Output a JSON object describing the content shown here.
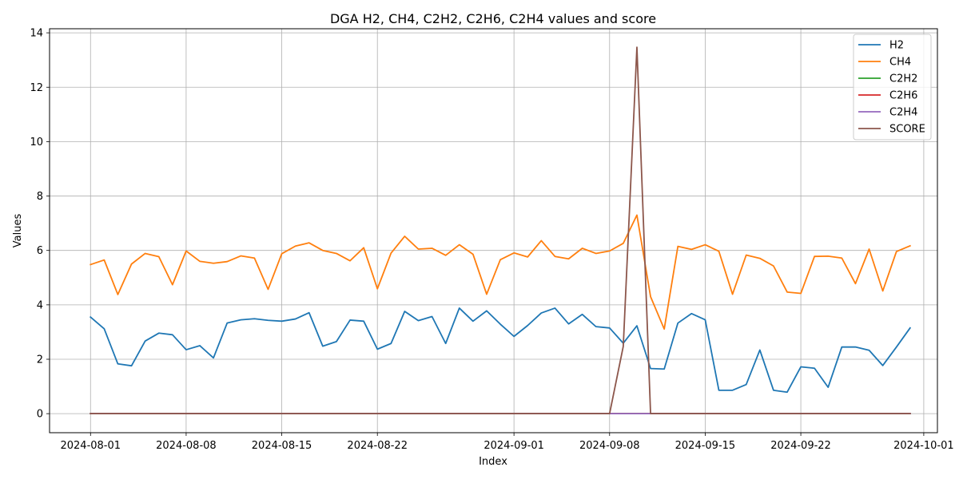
{
  "chart_data": {
    "type": "line",
    "title": "DGA H2, CH4, C2H2, C2H6, C2H4 values and score",
    "xlabel": "Index",
    "ylabel": "Values",
    "x_start": "2024-08-01",
    "xlim": [
      "2024-07-29",
      "2024-10-02"
    ],
    "ylim": [
      -0.7,
      14.15
    ],
    "xticks": [
      "2024-08-01",
      "2024-08-08",
      "2024-08-15",
      "2024-08-22",
      "2024-09-01",
      "2024-09-08",
      "2024-09-15",
      "2024-09-22",
      "2024-10-01"
    ],
    "yticks": [
      0,
      2,
      4,
      6,
      8,
      10,
      12,
      14
    ],
    "grid": true,
    "legend_position": "top-right",
    "series": [
      {
        "name": "H2",
        "color": "#1f77b4",
        "values": [
          3.55,
          3.12,
          1.83,
          1.76,
          2.67,
          2.96,
          2.9,
          2.35,
          2.5,
          2.05,
          3.33,
          3.45,
          3.49,
          3.43,
          3.4,
          3.48,
          3.71,
          2.48,
          2.65,
          3.44,
          3.4,
          2.37,
          2.58,
          3.76,
          3.42,
          3.57,
          2.58,
          3.88,
          3.4,
          3.78,
          3.29,
          2.84,
          3.24,
          3.7,
          3.88,
          3.3,
          3.65,
          3.2,
          3.15,
          2.59,
          3.23,
          1.66,
          1.64,
          3.33,
          3.68,
          3.45,
          0.86,
          0.86,
          1.07,
          2.34,
          0.86,
          0.79,
          1.72,
          1.67,
          0.97,
          2.45,
          2.45,
          2.33,
          1.77,
          2.45,
          3.15
        ]
      },
      {
        "name": "CH4",
        "color": "#ff7f0e",
        "values": [
          5.48,
          5.65,
          4.38,
          5.5,
          5.89,
          5.77,
          4.74,
          5.98,
          5.6,
          5.53,
          5.59,
          5.8,
          5.72,
          4.57,
          5.88,
          6.16,
          6.28,
          6.0,
          5.89,
          5.62,
          6.1,
          4.59,
          5.9,
          6.52,
          6.05,
          6.08,
          5.82,
          6.21,
          5.86,
          4.39,
          5.66,
          5.91,
          5.76,
          6.36,
          5.78,
          5.69,
          6.08,
          5.89,
          5.98,
          6.26,
          7.3,
          4.3,
          3.11,
          6.15,
          6.04,
          6.21,
          5.97,
          4.39,
          5.83,
          5.71,
          5.43,
          4.47,
          4.42,
          5.78,
          5.79,
          5.72,
          4.78,
          6.05,
          4.51,
          5.96,
          6.17
        ]
      },
      {
        "name": "C2H2",
        "color": "#2ca02c",
        "values": [
          0,
          0,
          0,
          0,
          0,
          0,
          0,
          0,
          0,
          0,
          0,
          0,
          0,
          0,
          0,
          0,
          0,
          0,
          0,
          0,
          0,
          0,
          0,
          0,
          0,
          0,
          0,
          0,
          0,
          0,
          0,
          0,
          0,
          0,
          0,
          0,
          0,
          0,
          0,
          0,
          0,
          0,
          0,
          0,
          0,
          0,
          0,
          0,
          0,
          0,
          0,
          0,
          0,
          0,
          0,
          0,
          0,
          0,
          0,
          0,
          0
        ]
      },
      {
        "name": "C2H6",
        "color": "#d62728",
        "values": [
          0,
          0,
          0,
          0,
          0,
          0,
          0,
          0,
          0,
          0,
          0,
          0,
          0,
          0,
          0,
          0,
          0,
          0,
          0,
          0,
          0,
          0,
          0,
          0,
          0,
          0,
          0,
          0,
          0,
          0,
          0,
          0,
          0,
          0,
          0,
          0,
          0,
          0,
          0,
          0,
          0,
          0,
          0,
          0,
          0,
          0,
          0,
          0,
          0,
          0,
          0,
          0,
          0,
          0,
          0,
          0,
          0,
          0,
          0,
          0,
          0
        ]
      },
      {
        "name": "C2H4",
        "color": "#9467bd",
        "values": [
          0,
          0,
          0,
          0,
          0,
          0,
          0,
          0,
          0,
          0,
          0,
          0,
          0,
          0,
          0,
          0,
          0,
          0,
          0,
          0,
          0,
          0,
          0,
          0,
          0,
          0,
          0,
          0,
          0,
          0,
          0,
          0,
          0,
          0,
          0,
          0,
          0,
          0,
          0,
          0,
          0,
          0,
          0,
          0,
          0,
          0,
          0,
          0,
          0,
          0,
          0,
          0,
          0,
          0,
          0,
          0,
          0,
          0,
          0,
          0,
          0
        ]
      },
      {
        "name": "SCORE",
        "color": "#8c564b",
        "values": [
          0,
          0,
          0,
          0,
          0,
          0,
          0,
          0,
          0,
          0,
          0,
          0,
          0,
          0,
          0,
          0,
          0,
          0,
          0,
          0,
          0,
          0,
          0,
          0,
          0,
          0,
          0,
          0,
          0,
          0,
          0,
          0,
          0,
          0,
          0,
          0,
          0,
          0,
          0,
          2.47,
          13.47,
          0,
          0,
          0,
          0,
          0,
          0,
          0,
          0,
          0,
          0,
          0,
          0,
          0,
          0,
          0,
          0,
          0,
          0,
          0,
          0
        ]
      }
    ]
  }
}
